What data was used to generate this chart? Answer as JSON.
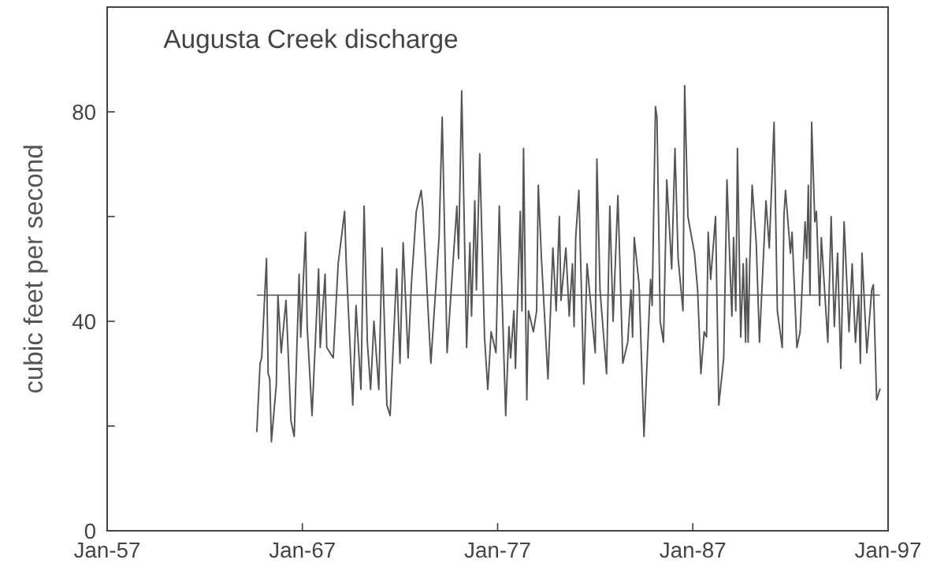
{
  "chart_data": {
    "type": "line",
    "title": "Augusta Creek discharge",
    "ylabel": "cubic feet per second",
    "xlim": [
      "1957-01",
      "1997-01"
    ],
    "xticks": [
      {
        "value": "1957-01",
        "label": "Jan-57"
      },
      {
        "value": "1967-01",
        "label": "Jan-67"
      },
      {
        "value": "1977-01",
        "label": "Jan-77"
      },
      {
        "value": "1987-01",
        "label": "Jan-87"
      },
      {
        "value": "1997-01",
        "label": "Jan-97"
      }
    ],
    "ylim": [
      0,
      100
    ],
    "yticks": [
      0,
      {
        "value": 20,
        "label": null
      },
      40,
      {
        "value": 60,
        "label": null
      },
      80
    ],
    "grid": false,
    "ref_lines": [
      {
        "axis": "y",
        "value": 45,
        "color": "#555555"
      }
    ],
    "series": [
      {
        "color": "#555555",
        "x": [
          "1964-09",
          "1964-11",
          "1964-12",
          "1965-03",
          "1965-04",
          "1965-05",
          "1965-06",
          "1965-09",
          "1965-10",
          "1965-12",
          "1966-03",
          "1966-06",
          "1966-08",
          "1966-11",
          "1966-12",
          "1967-03",
          "1967-04",
          "1967-07",
          "1967-11",
          "1967-12",
          "1968-03",
          "1968-04",
          "1968-08",
          "1968-11",
          "1969-03",
          "1969-04",
          "1969-08",
          "1969-10",
          "1970-01",
          "1970-03",
          "1970-05",
          "1970-07",
          "1970-09",
          "1970-12",
          "1971-02",
          "1971-05",
          "1971-07",
          "1971-11",
          "1972-01",
          "1972-03",
          "1972-06",
          "1972-08",
          "1972-11",
          "1973-02",
          "1973-03",
          "1973-08",
          "1974-01",
          "1974-03",
          "1974-06",
          "1974-10",
          "1974-12",
          "1975-01",
          "1975-03",
          "1975-06",
          "1975-08",
          "1975-09",
          "1975-11",
          "1975-12",
          "1976-02",
          "1976-05",
          "1976-07",
          "1976-09",
          "1976-12",
          "1977-02",
          "1977-06",
          "1977-08",
          "1977-09",
          "1977-11",
          "1977-12",
          "1978-03",
          "1978-04",
          "1978-05",
          "1978-07",
          "1978-08",
          "1978-11",
          "1979-01",
          "1979-02",
          "1979-04",
          "1979-08",
          "1979-11",
          "1980-01",
          "1980-03",
          "1980-04",
          "1980-07",
          "1980-09",
          "1980-11",
          "1980-12",
          "1981-01",
          "1981-03",
          "1981-06",
          "1981-08",
          "1982-01",
          "1982-02",
          "1982-04",
          "1982-08",
          "1982-10",
          "1982-12",
          "1983-03",
          "1983-06",
          "1983-09",
          "1983-11",
          "1983-12",
          "1984-01",
          "1984-04",
          "1984-07",
          "1984-11",
          "1984-12",
          "1985-02",
          "1985-03",
          "1985-05",
          "1985-07",
          "1985-09",
          "1985-12",
          "1986-02",
          "1986-04",
          "1986-07",
          "1986-08",
          "1986-10",
          "1987-02",
          "1987-04",
          "1987-06",
          "1987-08",
          "1987-09-15",
          "1987-10-15",
          "1987-12",
          "1988-03",
          "1988-05",
          "1988-08",
          "1988-10",
          "1988-12",
          "1989-01",
          "1989-02-01",
          "1989-03-15",
          "1989-04-15",
          "1989-06-15",
          "1989-08-01",
          "1989-09-15",
          "1989-10-01",
          "1989-11-01",
          "1989-12-01",
          "1990-01-15",
          "1990-04",
          "1990-06",
          "1990-10",
          "1990-12",
          "1991-03",
          "1991-05",
          "1991-08",
          "1991-09",
          "1991-10",
          "1992-01",
          "1992-02",
          "1992-05",
          "1992-07",
          "1992-10",
          "1992-11",
          "1992-12",
          "1993-01",
          "1993-02",
          "1993-04",
          "1993-05",
          "1993-07",
          "1993-08",
          "1993-12",
          "1994-02",
          "1994-04",
          "1994-06",
          "1994-08",
          "1994-10",
          "1995-01",
          "1995-03",
          "1995-05",
          "1995-07",
          "1995-08",
          "1995-09",
          "1995-12",
          "1996-03",
          "1996-04",
          "1996-06",
          "1996-08"
        ],
        "values": [
          19,
          32,
          33,
          52,
          30,
          29,
          17,
          28,
          45,
          34,
          44,
          21,
          18,
          49,
          37,
          57,
          39,
          22,
          50,
          35,
          49,
          35,
          33,
          51,
          61,
          51,
          24,
          43,
          27,
          62,
          36,
          27,
          40,
          27,
          54,
          24,
          22,
          50,
          32,
          55,
          33,
          47,
          61,
          65,
          62,
          32,
          56,
          79,
          34,
          53,
          62,
          52,
          84,
          35,
          55,
          41,
          63,
          46,
          72,
          37,
          27,
          38,
          34,
          62,
          22,
          39,
          33,
          42,
          31,
          61,
          42,
          73,
          25,
          42,
          38,
          42,
          66,
          52,
          29,
          54,
          42,
          60,
          44,
          54,
          41,
          51,
          39,
          56,
          65,
          28,
          51,
          34,
          71,
          46,
          30,
          62,
          40,
          64,
          32,
          36,
          46,
          37,
          56,
          47,
          18,
          48,
          43,
          81,
          79,
          40,
          36,
          67,
          50,
          73,
          52,
          42,
          85,
          60,
          53,
          46,
          30,
          38,
          37,
          57,
          48,
          60,
          24,
          33,
          67,
          49,
          41,
          56,
          42,
          73,
          37,
          51,
          36,
          52,
          36,
          51,
          66,
          55,
          36,
          63,
          54,
          78,
          42,
          35,
          60,
          65,
          53,
          57,
          35,
          38,
          59,
          52,
          66,
          45,
          78,
          59,
          61,
          43,
          56,
          36,
          60,
          39,
          53,
          31,
          59,
          38,
          51,
          36,
          45,
          32,
          53,
          34,
          46,
          47,
          25,
          27
        ]
      }
    ]
  }
}
